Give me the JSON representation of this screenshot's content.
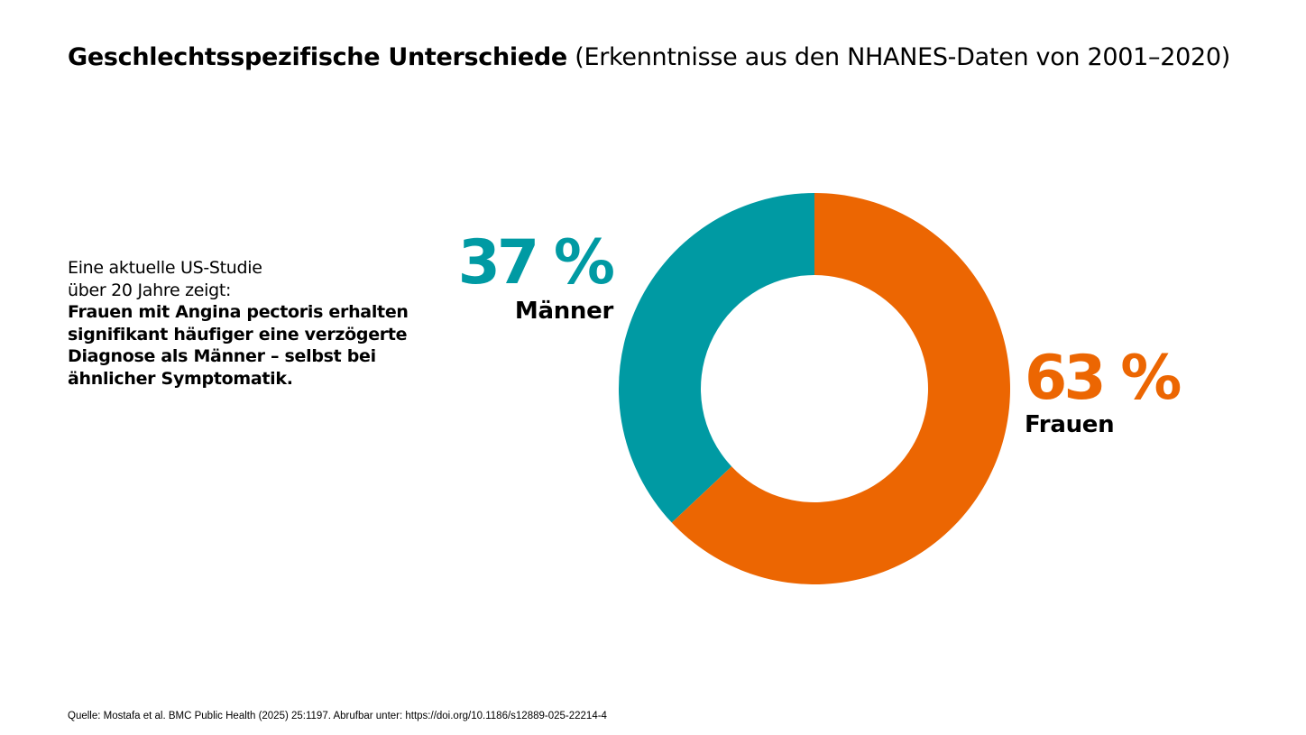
{
  "title": {
    "bold": "Geschlechtsspezifische Unterschiede",
    "normal": "(Erkenntnisse aus den NHANES-Daten von 2001–2020)"
  },
  "intro": {
    "line1": "Eine aktuelle US-Studie",
    "line2": "über 20 Jahre zeigt:",
    "bold": "Frauen mit Angina pectoris erhalten signifikant häufiger eine verzögerte Diagnose als Männer – selbst bei ähnlicher Symptomatik."
  },
  "chart_data": {
    "type": "pie",
    "variant": "donut",
    "categories": [
      "Männer",
      "Frauen"
    ],
    "values": [
      37,
      63
    ],
    "labels": [
      "37 %",
      "63 %"
    ],
    "colors": [
      "#009AA3",
      "#EC6602"
    ],
    "start": "top"
  },
  "source": "Quelle: Mostafa et al. BMC Public Health (2025) 25:1197. Abrufbar unter: https://doi.org/10.1186/s12889-025-22214-4"
}
